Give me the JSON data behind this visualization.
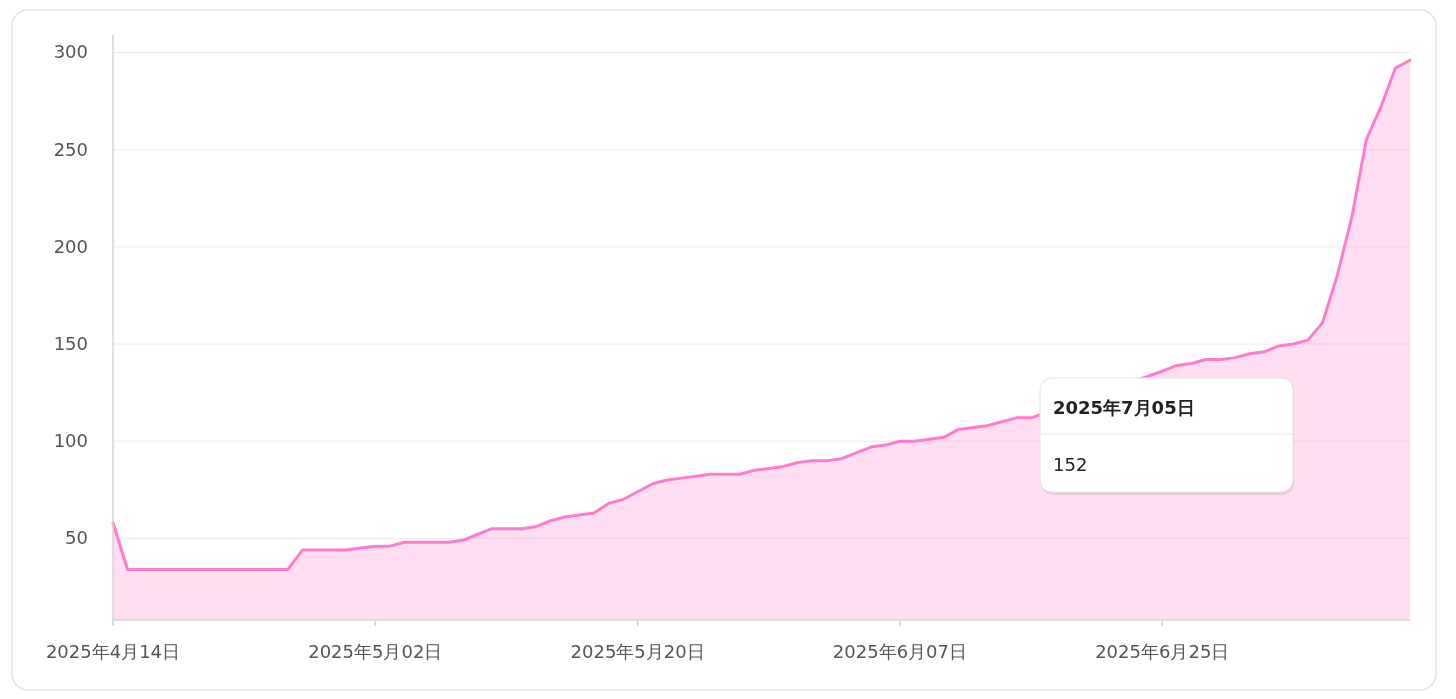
{
  "chart_data": {
    "type": "area",
    "x": [
      "2025-04-14",
      "2025-04-15",
      "2025-04-16",
      "2025-04-17",
      "2025-04-18",
      "2025-04-19",
      "2025-04-20",
      "2025-04-21",
      "2025-04-22",
      "2025-04-23",
      "2025-04-24",
      "2025-04-25",
      "2025-04-26",
      "2025-04-27",
      "2025-04-28",
      "2025-04-29",
      "2025-04-30",
      "2025-05-01",
      "2025-05-02",
      "2025-05-03",
      "2025-05-04",
      "2025-05-05",
      "2025-05-06",
      "2025-05-07",
      "2025-05-08",
      "2025-05-09",
      "2025-05-10",
      "2025-05-11",
      "2025-05-12",
      "2025-05-13",
      "2025-05-14",
      "2025-05-15",
      "2025-05-16",
      "2025-05-17",
      "2025-05-18",
      "2025-05-19",
      "2025-05-20",
      "2025-05-21",
      "2025-05-22",
      "2025-05-23",
      "2025-05-24",
      "2025-05-25",
      "2025-05-26",
      "2025-05-27",
      "2025-05-28",
      "2025-05-29",
      "2025-05-30",
      "2025-05-31",
      "2025-06-01",
      "2025-06-02",
      "2025-06-03",
      "2025-06-04",
      "2025-06-05",
      "2025-06-06",
      "2025-06-07",
      "2025-06-08",
      "2025-06-09",
      "2025-06-10",
      "2025-06-11",
      "2025-06-12",
      "2025-06-13",
      "2025-06-14",
      "2025-06-15",
      "2025-06-16",
      "2025-06-25",
      "2025-06-26",
      "2025-06-27",
      "2025-06-28",
      "2025-06-29",
      "2025-06-30",
      "2025-07-01",
      "2025-07-02",
      "2025-07-03",
      "2025-07-04",
      "2025-07-05",
      "2025-07-06",
      "2025-07-07",
      "2025-07-08",
      "2025-07-09",
      "2025-07-10",
      "2025-07-11",
      "2025-07-12"
    ],
    "series": [
      {
        "color": "#ff7ccd",
        "values": [
          58,
          34,
          34,
          34,
          34,
          34,
          34,
          34,
          34,
          34,
          34,
          34,
          34,
          44,
          44,
          44,
          44,
          45,
          46,
          46,
          48,
          48,
          48,
          48,
          49,
          52,
          55,
          55,
          55,
          56,
          59,
          61,
          62,
          63,
          68,
          70,
          74,
          78,
          80,
          81,
          82,
          83,
          83,
          83,
          85,
          86,
          87,
          89,
          90,
          90,
          91,
          94,
          97,
          98,
          100,
          100,
          101,
          102,
          106,
          107,
          108,
          110,
          112,
          112,
          136,
          139,
          140,
          142,
          142,
          143,
          145,
          146,
          149,
          150,
          152,
          161,
          185,
          215,
          255,
          272,
          292,
          296
        ]
      }
    ],
    "xlim": [
      "2025-04-14",
      "2025-07-12"
    ],
    "ylim": [
      8,
      309
    ],
    "xticks": [
      {
        "value": "2025-04-14",
        "label": "2025年4月14日"
      },
      {
        "value": "2025-05-02",
        "label": "2025年5月02日"
      },
      {
        "value": "2025-05-20",
        "label": "2025年5月20日"
      },
      {
        "value": "2025-06-07",
        "label": "2025年6月07日"
      },
      {
        "value": "2025-06-25",
        "label": "2025年6月25日"
      }
    ],
    "yticks": [
      50,
      100,
      150,
      200,
      250,
      300
    ],
    "grid": "y",
    "annotations": [
      "2025年7月05日",
      "152"
    ]
  }
}
